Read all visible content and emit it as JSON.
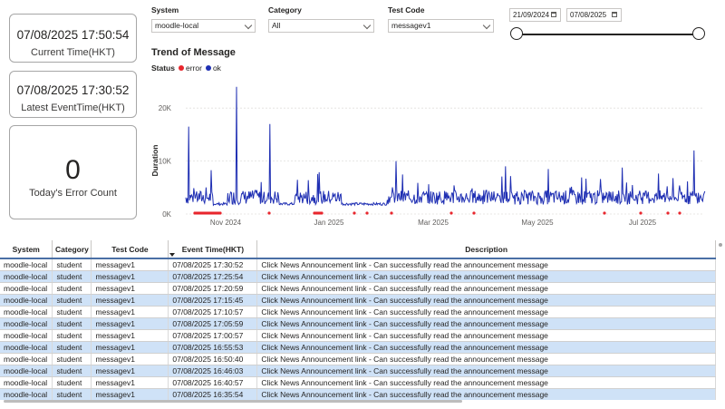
{
  "cards": {
    "current_time_value": "07/08/2025 17:50:54",
    "current_time_label": "Current Time(HKT)",
    "latest_event_value": "07/08/2025 17:30:52",
    "latest_event_label": "Latest EventTime(HKT)",
    "error_count_value": "0",
    "error_count_label": "Today's Error Count"
  },
  "slicers": {
    "system": {
      "label": "System",
      "value": "moodle-local"
    },
    "category": {
      "label": "Category",
      "value": "All"
    },
    "test_code": {
      "label": "Test Code",
      "value": "messagev1"
    }
  },
  "date_range": {
    "start": "21/09/2024",
    "end": "07/08/2025"
  },
  "chart": {
    "title": "Trend of Message",
    "legend_title": "Status",
    "legend_error": "error",
    "legend_ok": "ok"
  },
  "chart_data": {
    "type": "line",
    "title": "Trend of Message",
    "ylabel": "Duration",
    "xlabel": "",
    "ylim": [
      0,
      25000
    ],
    "y_ticks": [
      {
        "label": "0K",
        "value": 0
      },
      {
        "label": "10K",
        "value": 10000
      },
      {
        "label": "20K",
        "value": 20000
      }
    ],
    "x_ticks": [
      "Nov 2024",
      "Jan 2025",
      "Mar 2025",
      "May 2025",
      "Jul 2025"
    ],
    "legend": "top-left",
    "series": [
      {
        "name": "error",
        "color": "#e8262d"
      },
      {
        "name": "ok",
        "color": "#1f2fb3",
        "baseline": 3000,
        "peaks": [
          24000,
          17000,
          16500,
          10000,
          9000,
          8500,
          12000
        ]
      }
    ]
  },
  "colors": {
    "ok": "#1f2fb3",
    "error": "#e8262d",
    "row_alt": "#cfe2f7",
    "header_rule": "#4a6fa5"
  },
  "table": {
    "columns": [
      "System",
      "Category",
      "Test Code",
      "Event Time(HKT)",
      "Description"
    ],
    "rows": [
      [
        "moodle-local",
        "student",
        "messagev1",
        "07/08/2025 17:30:52",
        "Click News Announcement link - Can successfully read the announcement message"
      ],
      [
        "moodle-local",
        "student",
        "messagev1",
        "07/08/2025 17:25:54",
        "Click News Announcement link - Can successfully read the announcement message"
      ],
      [
        "moodle-local",
        "student",
        "messagev1",
        "07/08/2025 17:20:59",
        "Click News Announcement link - Can successfully read the announcement message"
      ],
      [
        "moodle-local",
        "student",
        "messagev1",
        "07/08/2025 17:15:45",
        "Click News Announcement link - Can successfully read the announcement message"
      ],
      [
        "moodle-local",
        "student",
        "messagev1",
        "07/08/2025 17:10:57",
        "Click News Announcement link - Can successfully read the announcement message"
      ],
      [
        "moodle-local",
        "student",
        "messagev1",
        "07/08/2025 17:05:59",
        "Click News Announcement link - Can successfully read the announcement message"
      ],
      [
        "moodle-local",
        "student",
        "messagev1",
        "07/08/2025 17:00:57",
        "Click News Announcement link - Can successfully read the announcement message"
      ],
      [
        "moodle-local",
        "student",
        "messagev1",
        "07/08/2025 16:55:53",
        "Click News Announcement link - Can successfully read the announcement message"
      ],
      [
        "moodle-local",
        "student",
        "messagev1",
        "07/08/2025 16:50:40",
        "Click News Announcement link - Can successfully read the announcement message"
      ],
      [
        "moodle-local",
        "student",
        "messagev1",
        "07/08/2025 16:46:03",
        "Click News Announcement link - Can successfully read the announcement message"
      ],
      [
        "moodle-local",
        "student",
        "messagev1",
        "07/08/2025 16:40:57",
        "Click News Announcement link - Can successfully read the announcement message"
      ],
      [
        "moodle-local",
        "student",
        "messagev1",
        "07/08/2025 16:35:54",
        "Click News Announcement link - Can successfully read the announcement message"
      ]
    ]
  }
}
